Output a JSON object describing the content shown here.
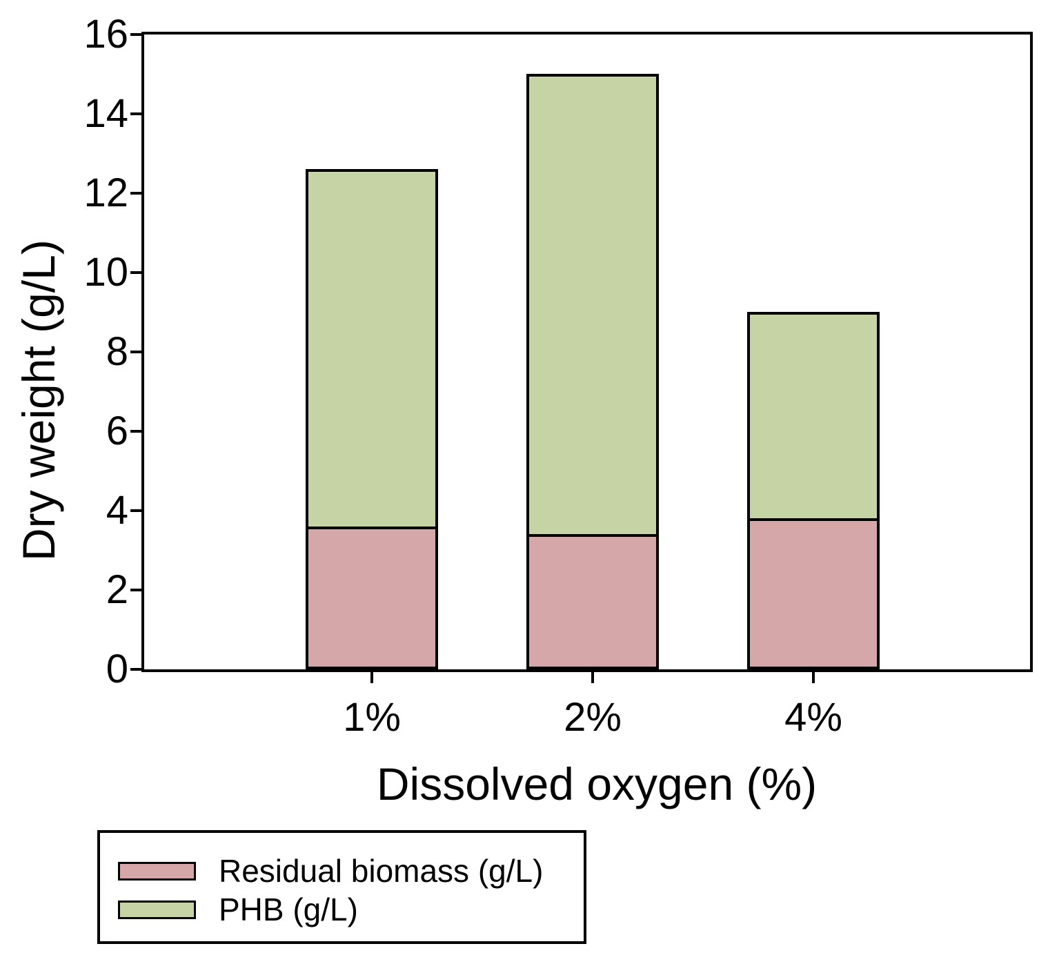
{
  "chart_data": {
    "type": "bar",
    "stacked": true,
    "xlabel": "Dissolved oxygen (%)",
    "ylabel": "Dry weight (g/L)",
    "categories": [
      "1%",
      "2%",
      "4%"
    ],
    "series": [
      {
        "name": "Residual biomass (g/L)",
        "color": "#d5a7a9",
        "values": [
          3.6,
          3.4,
          3.8
        ]
      },
      {
        "name": "PHB (g/L)",
        "color": "#c6d3a5",
        "values": [
          9.0,
          11.6,
          5.2
        ]
      }
    ],
    "totals": [
      12.6,
      15.0,
      9.0
    ],
    "ylim": [
      0,
      16
    ],
    "yticks": [
      0,
      2,
      4,
      6,
      8,
      10,
      12,
      14,
      16
    ],
    "grid": false,
    "legend_position": "below-left",
    "bar_outline_color": "#000000",
    "axis_color": "#000000",
    "background_color": "#ffffff"
  }
}
